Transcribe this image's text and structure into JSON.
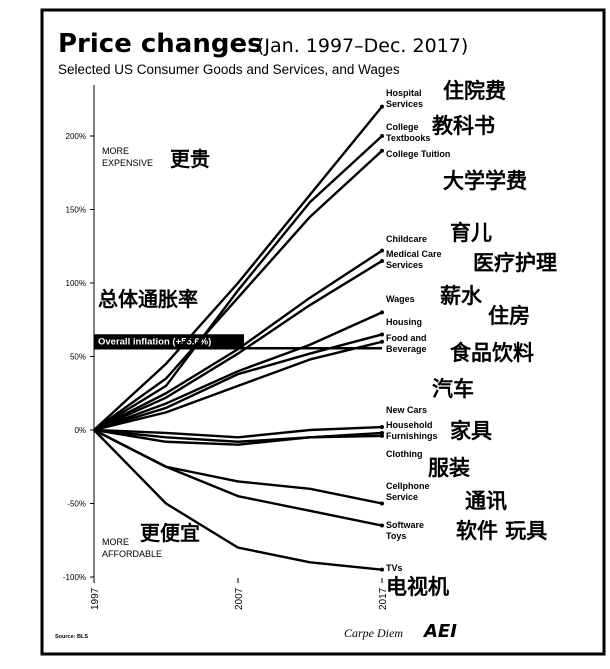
{
  "chart_data": {
    "type": "line",
    "title": "Price changes",
    "title_range": "(Jan. 1997–Dec. 2017)",
    "subtitle": "Selected US Consumer Goods and Services, and Wages",
    "x_ticks": [
      "1997",
      "2007",
      "2017"
    ],
    "y_ticks": [
      {
        "v": 200,
        "label": "200%"
      },
      {
        "v": 150,
        "label": "150%"
      },
      {
        "v": 100,
        "label": "100%"
      },
      {
        "v": 50,
        "label": "50%"
      },
      {
        "v": 0,
        "label": "0%"
      },
      {
        "v": -50,
        "label": "-50%"
      },
      {
        "v": -100,
        "label": "-100%"
      }
    ],
    "xlim": [
      1997,
      2017
    ],
    "ylim": [
      -100,
      240
    ],
    "more_expensive": "MORE EXPENSIVE",
    "more_expensive_cn": "更贵",
    "more_affordable": "MORE AFFORDABLE",
    "more_affordable_cn": "更便宜",
    "overall_inflation": {
      "value": 55.6,
      "label": "Overall inflation (+55.6%)",
      "label_cn": "总体通胀率"
    },
    "series": [
      {
        "name": "Hospital Services",
        "name_cn": "住院费",
        "x": [
          1997,
          2002,
          2007,
          2012,
          2017
        ],
        "values": [
          0,
          45,
          100,
          160,
          220
        ]
      },
      {
        "name": "College Textbooks",
        "name_cn": "教科书",
        "x": [
          1997,
          2002,
          2007,
          2012,
          2017
        ],
        "values": [
          0,
          30,
          95,
          155,
          200
        ]
      },
      {
        "name": "College Tuition",
        "name_cn": "大学学费",
        "x": [
          1997,
          2002,
          2007,
          2012,
          2017
        ],
        "values": [
          0,
          35,
          90,
          145,
          190
        ]
      },
      {
        "name": "Childcare",
        "name_cn": "育儿",
        "x": [
          1997,
          2002,
          2007,
          2012,
          2017
        ],
        "values": [
          0,
          25,
          55,
          90,
          122
        ]
      },
      {
        "name": "Medical Care Services",
        "name_cn": "医疗护理",
        "x": [
          1997,
          2002,
          2007,
          2012,
          2017
        ],
        "values": [
          0,
          22,
          52,
          85,
          115
        ]
      },
      {
        "name": "Wages",
        "name_cn": "薪水",
        "x": [
          1997,
          2002,
          2007,
          2012,
          2017
        ],
        "values": [
          0,
          18,
          40,
          58,
          80
        ]
      },
      {
        "name": "Housing",
        "name_cn": "住房",
        "x": [
          1997,
          2002,
          2007,
          2012,
          2017
        ],
        "values": [
          0,
          15,
          38,
          52,
          65
        ]
      },
      {
        "name": "Food and Beverage",
        "name_cn": "食品饮料",
        "x": [
          1997,
          2002,
          2007,
          2012,
          2017
        ],
        "values": [
          0,
          12,
          30,
          48,
          60
        ]
      },
      {
        "name": "New Cars",
        "name_cn": "汽车",
        "x": [
          1997,
          2002,
          2007,
          2012,
          2017
        ],
        "values": [
          0,
          -2,
          -5,
          0,
          2
        ]
      },
      {
        "name": "Household Furnishings",
        "name_cn": "家具",
        "x": [
          1997,
          2002,
          2007,
          2012,
          2017
        ],
        "values": [
          0,
          -5,
          -8,
          -5,
          -2
        ]
      },
      {
        "name": "Clothing",
        "name_cn": "服装",
        "x": [
          1997,
          2002,
          2007,
          2012,
          2017
        ],
        "values": [
          0,
          -8,
          -10,
          -5,
          -4
        ]
      },
      {
        "name": "Cellphone Service",
        "name_cn": "通讯",
        "x": [
          1997,
          2002,
          2007,
          2012,
          2017
        ],
        "values": [
          0,
          -25,
          -35,
          -40,
          -50
        ]
      },
      {
        "name": "Software Toys",
        "name_cn": "软件 玩具",
        "x": [
          1997,
          2002,
          2007,
          2012,
          2017
        ],
        "values": [
          0,
          -25,
          -45,
          -55,
          -65
        ]
      },
      {
        "name": "TVs",
        "name_cn": "电视机",
        "x": [
          1997,
          2002,
          2007,
          2012,
          2017
        ],
        "values": [
          0,
          -50,
          -80,
          -90,
          -95
        ]
      }
    ],
    "source": "Source: BLS",
    "footer_brand": "Carpe Diem",
    "footer_logo": "AEI"
  }
}
